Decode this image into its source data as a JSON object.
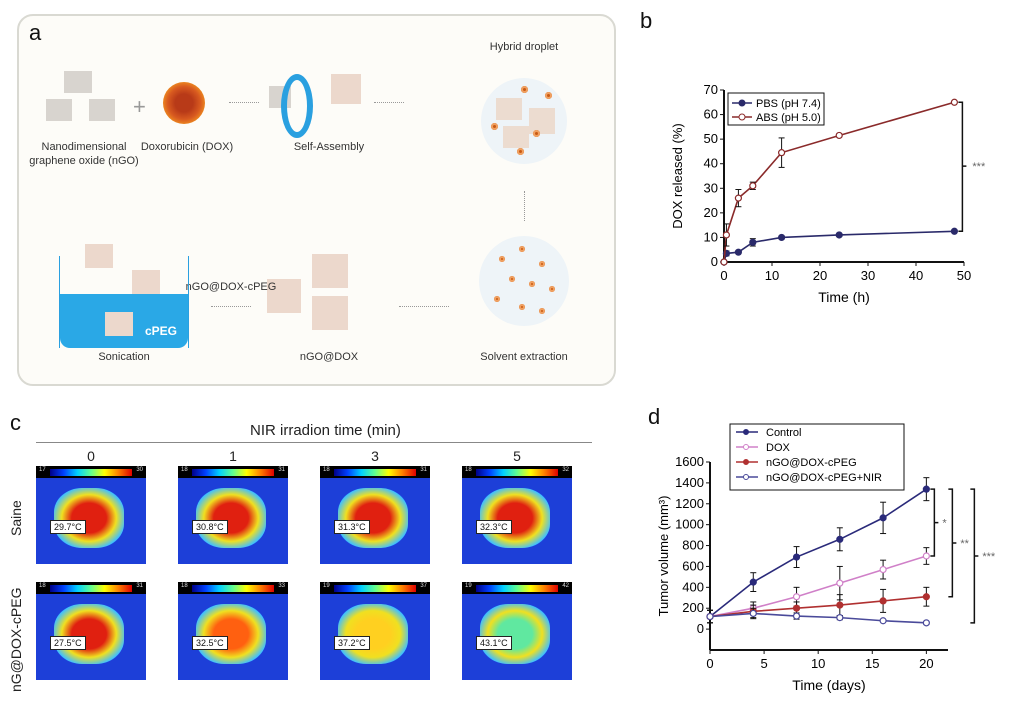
{
  "panels": {
    "a": {
      "label": "a",
      "steps": {
        "ngo": "Nanodimensional graphene oxide (nGO)",
        "dox": "Doxorubicin (DOX)",
        "self_assembly": "Self-Assembly",
        "hybrid": "Hybrid droplet",
        "solvent": "Solvent extraction",
        "ngo_dox": "nGO@DOX",
        "ngo_dox_cpeg": "nGO@DOX-cPEG",
        "sonication": "Sonication",
        "cpeg": "cPEG",
        "plus": "+"
      }
    },
    "c": {
      "label": "c",
      "title": "NIR irradion time (min)",
      "columns": [
        "0",
        "1",
        "3",
        "5"
      ],
      "rows": [
        {
          "label": "Saine",
          "images": [
            {
              "temp": "29.7°C",
              "scale_min": "17",
              "scale_max": "30"
            },
            {
              "temp": "30.8°C",
              "scale_min": "18",
              "scale_max": "31"
            },
            {
              "temp": "31.3°C",
              "scale_min": "18",
              "scale_max": "31"
            },
            {
              "temp": "32.3°C",
              "scale_min": "18",
              "scale_max": "32"
            }
          ]
        },
        {
          "label": "nG@DOX-cPEG",
          "images": [
            {
              "temp": "27.5°C",
              "scale_min": "18",
              "scale_max": "31"
            },
            {
              "temp": "32.5°C",
              "scale_min": "18",
              "scale_max": "33"
            },
            {
              "temp": "37.2°C",
              "scale_min": "19",
              "scale_max": "37"
            },
            {
              "temp": "43.1°C",
              "scale_min": "19",
              "scale_max": "42"
            }
          ]
        }
      ]
    }
  },
  "chart_data": [
    {
      "panel": "b",
      "type": "line",
      "xlabel": "Time (h)",
      "ylabel": "DOX released (%)",
      "xlim": [
        0,
        50
      ],
      "ylim": [
        0,
        70
      ],
      "xticks": [
        0,
        10,
        20,
        30,
        40,
        50
      ],
      "yticks": [
        0,
        10,
        20,
        30,
        40,
        50,
        60,
        70
      ],
      "legend": "top-left",
      "x": [
        0,
        0.5,
        3,
        6,
        12,
        24,
        48
      ],
      "series": [
        {
          "name": "PBS (pH 7.4)",
          "color": "#2a2a6a",
          "marker": "filled",
          "values": [
            0,
            3.5,
            4,
            8,
            10,
            11,
            12.5
          ],
          "errors": [
            0,
            1,
            0.5,
            1.5,
            0.5,
            0.5,
            0.5
          ]
        },
        {
          "name": "ABS (pH 5.0)",
          "color": "#8a2a2a",
          "marker": "open",
          "values": [
            0,
            11,
            26,
            31,
            44.5,
            51.5,
            65
          ],
          "errors": [
            0,
            4.5,
            3.5,
            1.5,
            6,
            0.5,
            0.5
          ]
        }
      ],
      "annotations": [
        {
          "text": "***",
          "between": [
            "PBS (pH 7.4)",
            "ABS (pH 5.0)"
          ]
        }
      ]
    },
    {
      "panel": "d",
      "type": "line",
      "xlabel": "Time (days)",
      "ylabel": "Tumor volume (mm³)",
      "xlim": [
        0,
        22
      ],
      "ylim": [
        -200,
        1600
      ],
      "xticks": [
        0,
        5,
        10,
        15,
        20
      ],
      "yticks": [
        0,
        200,
        400,
        600,
        800,
        1000,
        1200,
        1400,
        1600
      ],
      "legend": "top-left",
      "x": [
        0,
        4,
        8,
        12,
        16,
        20
      ],
      "series": [
        {
          "name": "Control",
          "color": "#2a2a7a",
          "marker": "filled",
          "values": [
            120,
            450,
            690,
            860,
            1065,
            1340
          ],
          "errors": [
            60,
            90,
            100,
            110,
            150,
            110
          ]
        },
        {
          "name": "DOX",
          "color": "#d080c8",
          "marker": "open",
          "values": [
            120,
            200,
            310,
            440,
            570,
            700
          ],
          "errors": [
            60,
            60,
            90,
            160,
            90,
            80
          ]
        },
        {
          "name": "nGO@DOX-cPEG",
          "color": "#b03030",
          "marker": "filled",
          "values": [
            120,
            170,
            200,
            230,
            270,
            310
          ],
          "errors": [
            60,
            60,
            60,
            100,
            110,
            90
          ]
        },
        {
          "name": "nGO@DOX-cPEG+NIR",
          "color": "#4a4a9a",
          "marker": "open",
          "values": [
            120,
            150,
            125,
            110,
            80,
            60
          ],
          "errors": [
            60,
            50,
            30,
            20,
            10,
            5
          ]
        }
      ],
      "annotations": [
        {
          "text": "*",
          "between": [
            "Control",
            "DOX"
          ]
        },
        {
          "text": "**",
          "between": [
            "Control",
            "nGO@DOX-cPEG"
          ]
        },
        {
          "text": "***",
          "between": [
            "Control",
            "nGO@DOX-cPEG+NIR"
          ]
        }
      ]
    }
  ]
}
